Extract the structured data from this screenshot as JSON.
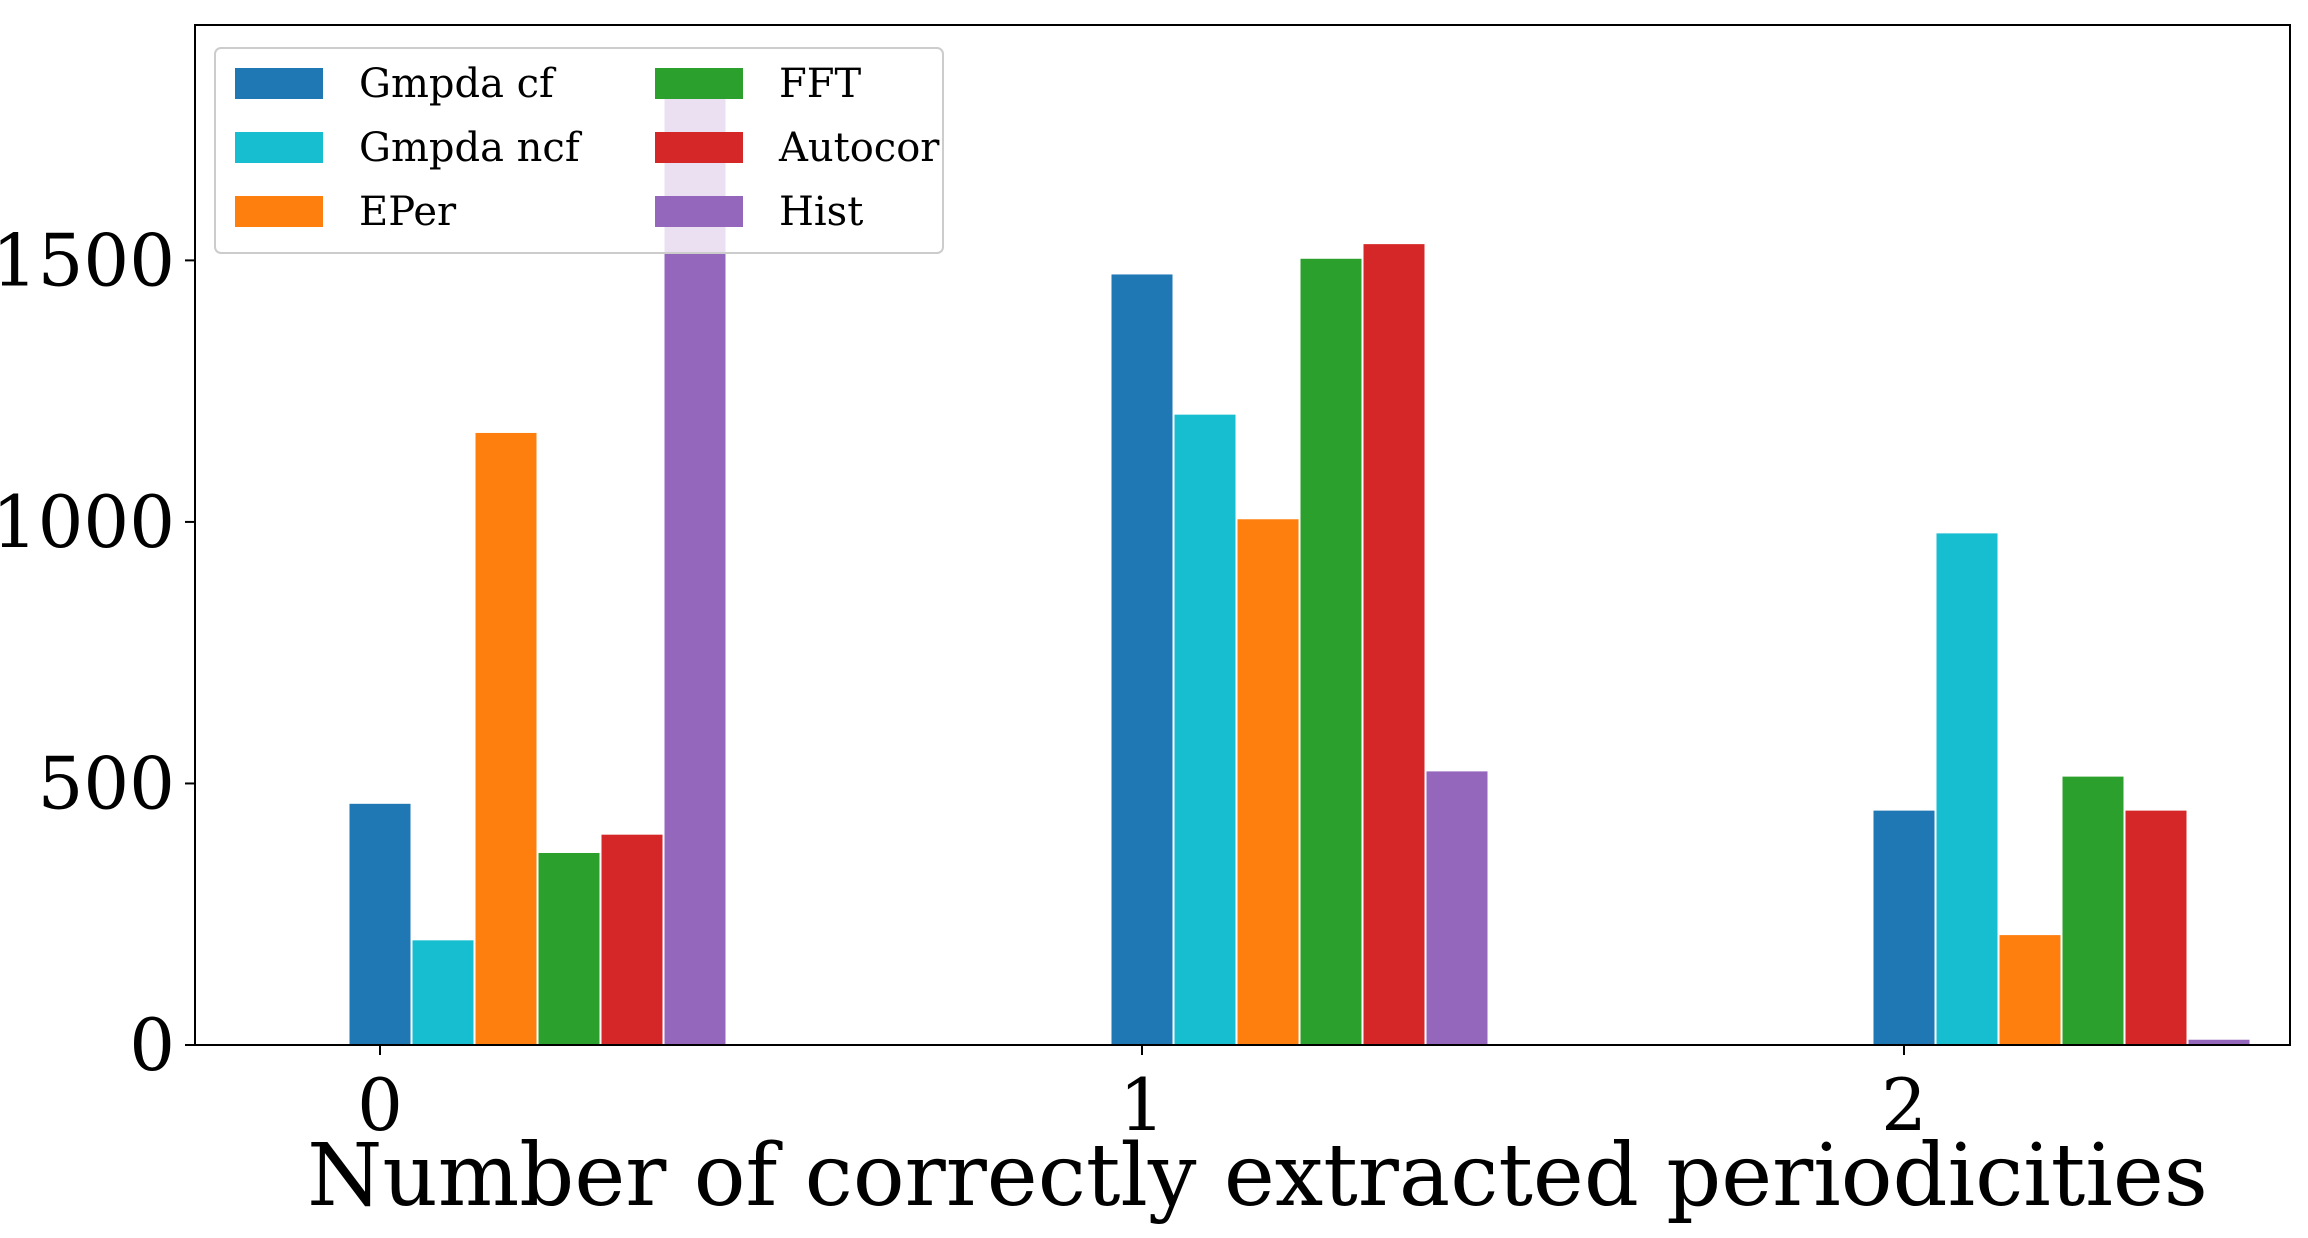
{
  "chart_data": {
    "type": "bar",
    "title": "",
    "xlabel": "Number of correctly extracted periodicities",
    "ylabel": "",
    "categories": [
      "0",
      "1",
      "2"
    ],
    "ylim": [
      0,
      1950
    ],
    "yticks": [
      0,
      500,
      1000,
      1500
    ],
    "grid": false,
    "legend_position": "top-left",
    "legend_columns": 2,
    "series": [
      {
        "name": "Gmpda cf",
        "color": "#1f77b4",
        "values": [
          463,
          1475,
          450
        ]
      },
      {
        "name": "Gmpda ncf",
        "color": "#17becf",
        "values": [
          202,
          1207,
          980
        ]
      },
      {
        "name": "EPer",
        "color": "#ff7f0e",
        "values": [
          1172,
          1007,
          212
        ]
      },
      {
        "name": "FFT",
        "color": "#2ca02c",
        "values": [
          369,
          1505,
          515
        ]
      },
      {
        "name": "Autocor",
        "color": "#d62728",
        "values": [
          404,
          1533,
          450
        ]
      },
      {
        "name": "Hist",
        "color": "#9467bd",
        "values": [
          1853,
          525,
          12
        ]
      }
    ]
  }
}
